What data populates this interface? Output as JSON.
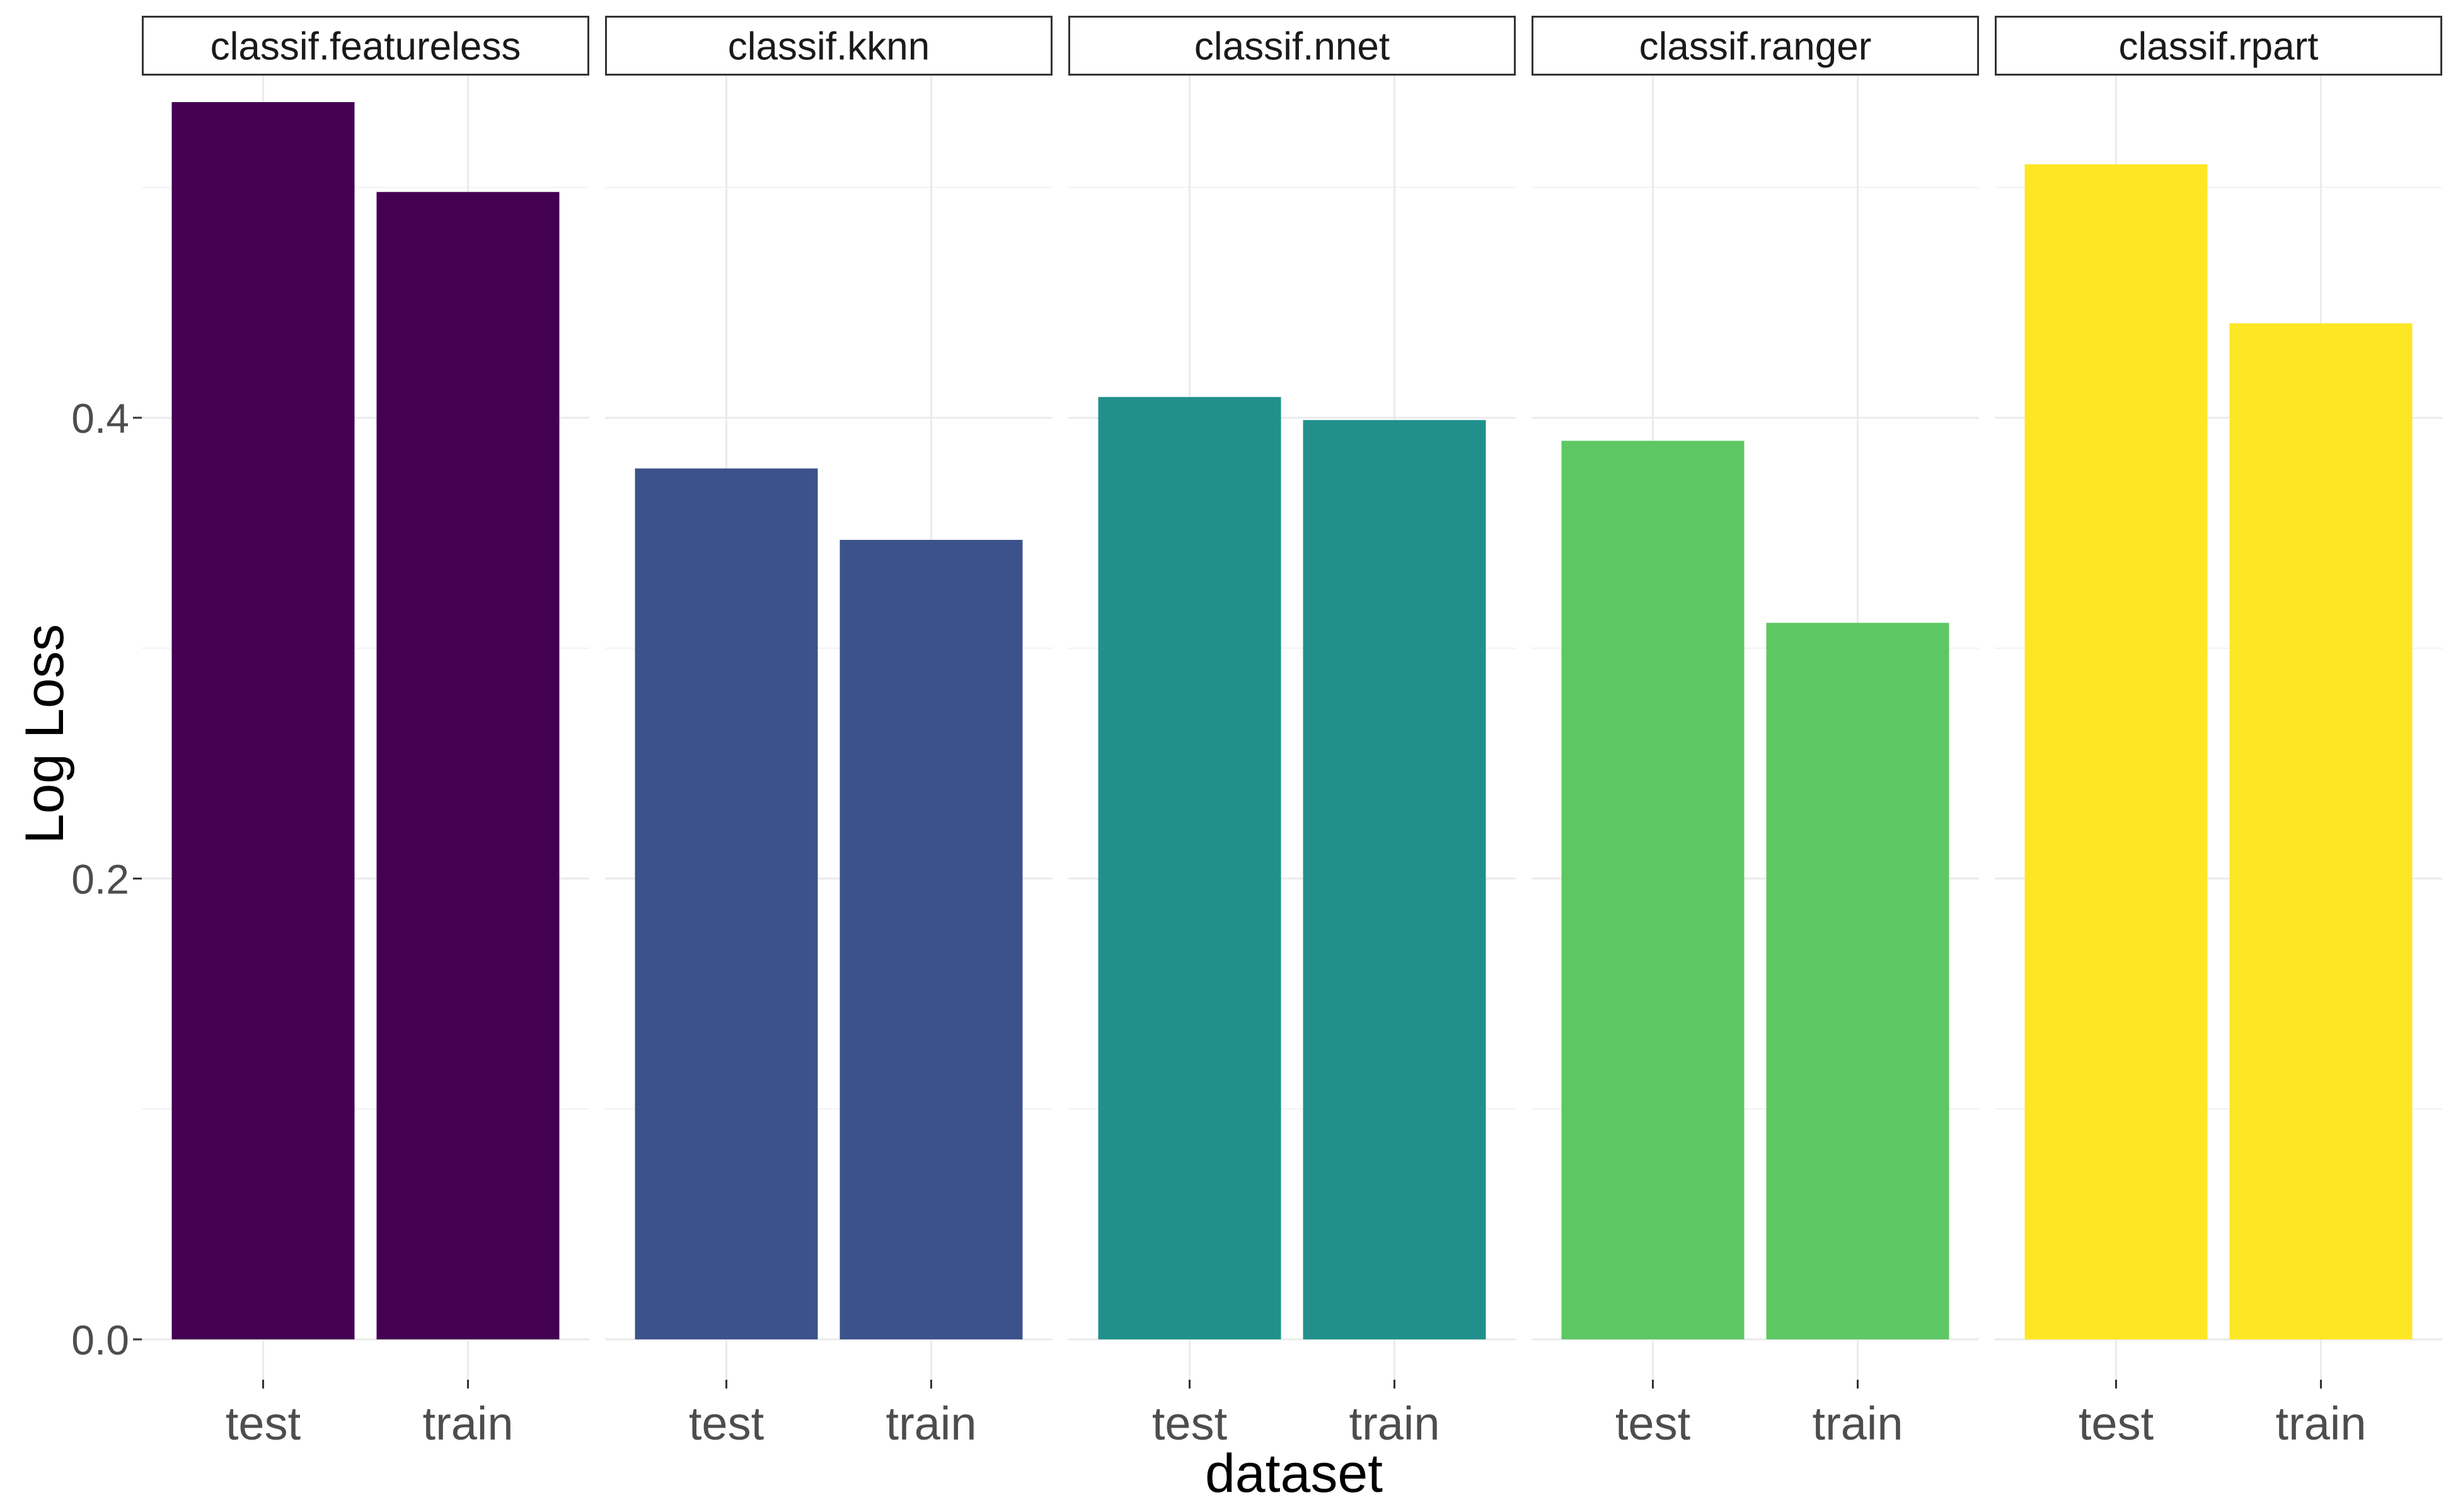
{
  "chart_data": {
    "type": "bar",
    "facet_by": "learner",
    "facets": [
      "classif.featureless",
      "classif.kknn",
      "classif.nnet",
      "classif.ranger",
      "classif.rpart"
    ],
    "categories": [
      "test",
      "train"
    ],
    "series": [
      {
        "facet": "classif.featureless",
        "values": [
          0.537,
          0.498
        ],
        "color": "#440154"
      },
      {
        "facet": "classif.kknn",
        "values": [
          0.378,
          0.347
        ],
        "color": "#3B528B"
      },
      {
        "facet": "classif.nnet",
        "values": [
          0.409,
          0.399
        ],
        "color": "#21908C"
      },
      {
        "facet": "classif.ranger",
        "values": [
          0.39,
          0.311
        ],
        "color": "#5DC863"
      },
      {
        "facet": "classif.rpart",
        "values": [
          0.51,
          0.441
        ],
        "color": "#FDE725"
      }
    ],
    "xlabel": "dataset",
    "ylabel": "Log Loss",
    "ylim": [
      -0.0175,
      0.5485
    ],
    "yticks": [
      0.0,
      0.2,
      0.4
    ],
    "ytick_labels": [
      "0.0",
      "0.2",
      "0.4"
    ],
    "grid": true,
    "legend": "none"
  }
}
